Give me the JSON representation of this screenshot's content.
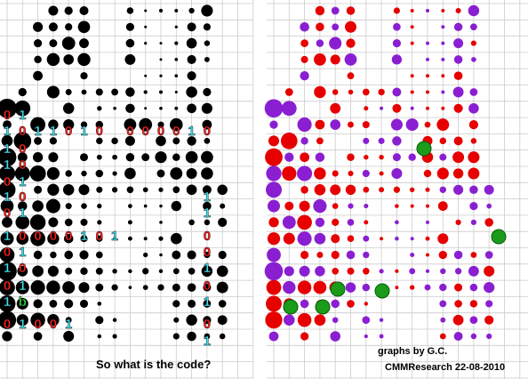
{
  "left_panel": {
    "caption": "So what is the code?",
    "digit_rows": [
      [
        "0",
        "1",
        null,
        null,
        null,
        null,
        null,
        null,
        null,
        null,
        null,
        null,
        null,
        null
      ],
      [
        "1",
        "0",
        "1",
        "1",
        "0",
        "1",
        "0",
        null,
        "0",
        "0",
        "0",
        "0",
        "1",
        "0"
      ],
      [
        "1",
        "0",
        null,
        null,
        null,
        null,
        null,
        null,
        null,
        null,
        null,
        null,
        null,
        null
      ],
      [
        "1",
        "0",
        null,
        null,
        null,
        null,
        null,
        null,
        null,
        null,
        null,
        null,
        null,
        null
      ],
      [
        "0",
        "1",
        null,
        null,
        null,
        null,
        null,
        null,
        null,
        null,
        null,
        null,
        null,
        null
      ],
      [
        "1",
        "0",
        null,
        null,
        null,
        null,
        null,
        null,
        null,
        null,
        null,
        null,
        null,
        "1"
      ],
      [
        "0",
        "1",
        null,
        null,
        null,
        null,
        null,
        null,
        null,
        null,
        null,
        null,
        null,
        "1"
      ],
      [
        "1",
        "0",
        "0",
        "0",
        "0",
        "1",
        "0",
        "1",
        null,
        null,
        null,
        null,
        null,
        "0"
      ],
      [
        "0",
        "1",
        null,
        null,
        null,
        null,
        null,
        null,
        null,
        null,
        null,
        null,
        null,
        "0"
      ],
      [
        "1",
        "0",
        null,
        null,
        null,
        null,
        null,
        null,
        null,
        null,
        null,
        null,
        null,
        "1"
      ],
      [
        "0",
        "1",
        null,
        null,
        null,
        null,
        null,
        null,
        null,
        null,
        null,
        null,
        null,
        "0"
      ],
      [
        "1",
        "b",
        null,
        null,
        null,
        null,
        null,
        null,
        null,
        null,
        null,
        null,
        null,
        "1"
      ],
      [
        "0",
        "1",
        "0",
        "0",
        "1",
        null,
        null,
        null,
        null,
        null,
        null,
        null,
        null,
        "0"
      ],
      [
        null,
        null,
        null,
        null,
        null,
        null,
        null,
        null,
        null,
        null,
        null,
        null,
        null,
        "1"
      ]
    ]
  },
  "right_panel": {
    "credit": "graphs by G.C.",
    "footer": "CMMResearch 22-08-2010"
  }
}
